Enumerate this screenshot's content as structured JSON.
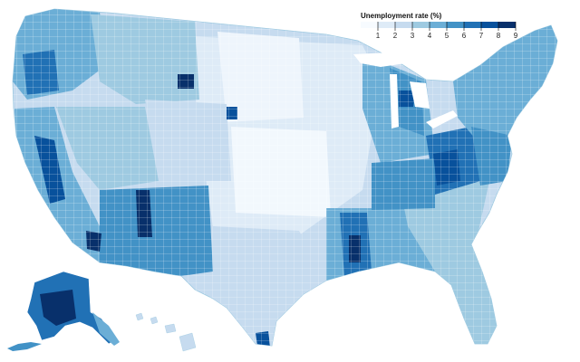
{
  "legend": {
    "title": "Unemployment rate (%)",
    "tick_labels": [
      "1",
      "2",
      "3",
      "4",
      "5",
      "6",
      "7",
      "8",
      "9"
    ],
    "swatch_colors": [
      "#f7fbff",
      "#deebf7",
      "#c6dbef",
      "#9ecae1",
      "#6baed6",
      "#4292c6",
      "#2171b5",
      "#08519c",
      "#08306b"
    ]
  },
  "map": {
    "region": "United States counties",
    "base_color": "#c6dbef",
    "border_color": "#ffffff",
    "insets": [
      "Alaska",
      "Hawaii"
    ]
  }
}
